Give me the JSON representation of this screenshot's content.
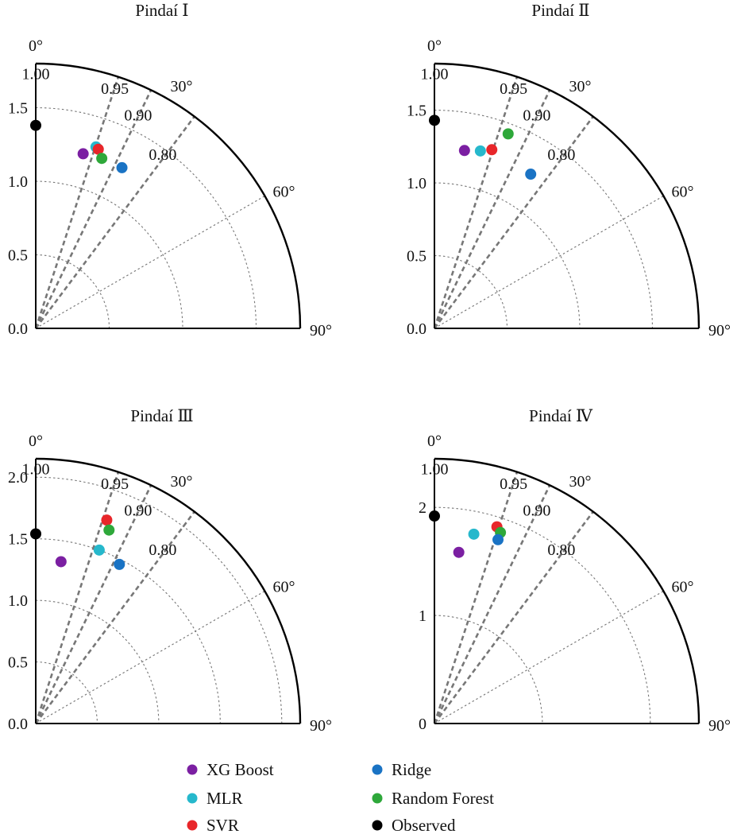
{
  "colors": {
    "XG Boost": "#7b1fa2",
    "MLR": "#26b8cc",
    "SVR": "#e8262a",
    "Ridge": "#1a73c4",
    "Random Forest": "#2ea83a",
    "Observed": "#000000"
  },
  "legend": {
    "items": [
      {
        "label": "XG Boost",
        "color": "#7b1fa2"
      },
      {
        "label": "MLR",
        "color": "#26b8cc"
      },
      {
        "label": "SVR",
        "color": "#e8262a"
      },
      {
        "label": "Ridge",
        "color": "#1a73c4"
      },
      {
        "label": "Random Forest",
        "color": "#2ea83a"
      },
      {
        "label": "Observed",
        "color": "#000000"
      }
    ]
  },
  "chart_data": [
    {
      "type": "taylor",
      "title": "Pindaí Ⅰ",
      "angle_labels": [
        "0°",
        "30°",
        "60°",
        "90°"
      ],
      "correlation_labels": [
        "1.00",
        "0.95",
        "0.90",
        "0.80"
      ],
      "correlations": [
        0.95,
        0.9,
        0.8
      ],
      "sd_ticks": [
        "0.0",
        "0.5",
        "1.0",
        "1.5"
      ],
      "sd_tick_values": [
        0.0,
        0.5,
        1.0,
        1.5
      ],
      "sd_max": 1.8,
      "rms_arcs": [
        0.5,
        1.0,
        1.5
      ],
      "points": [
        {
          "model": "XG Boost",
          "sd": 1.23,
          "correlation": 0.965
        },
        {
          "model": "MLR",
          "sd": 1.3,
          "correlation": 0.949
        },
        {
          "model": "SVR",
          "sd": 1.29,
          "correlation": 0.944
        },
        {
          "model": "Random Forest",
          "sd": 1.24,
          "correlation": 0.932
        },
        {
          "model": "Ridge",
          "sd": 1.24,
          "correlation": 0.881
        },
        {
          "model": "Observed",
          "sd": 1.38,
          "correlation": 1.0
        }
      ]
    },
    {
      "type": "taylor",
      "title": "Pindaí Ⅱ",
      "angle_labels": [
        "0°",
        "30°",
        "60°",
        "90°"
      ],
      "correlation_labels": [
        "1.00",
        "0.95",
        "0.90",
        "0.80"
      ],
      "correlations": [
        0.95,
        0.9,
        0.8
      ],
      "sd_ticks": [
        "0.0",
        "0.5",
        "1.0",
        "1.5"
      ],
      "sd_tick_values": [
        0.0,
        0.5,
        1.0,
        1.5
      ],
      "sd_max": 1.82,
      "rms_arcs": [
        0.5,
        1.0,
        1.5
      ],
      "points": [
        {
          "model": "XG Boost",
          "sd": 1.24,
          "correlation": 0.986
        },
        {
          "model": "MLR",
          "sd": 1.26,
          "correlation": 0.968
        },
        {
          "model": "SVR",
          "sd": 1.29,
          "correlation": 0.952
        },
        {
          "model": "Random Forest",
          "sd": 1.43,
          "correlation": 0.935
        },
        {
          "model": "Ridge",
          "sd": 1.25,
          "correlation": 0.848
        },
        {
          "model": "Observed",
          "sd": 1.43,
          "correlation": 1.0
        }
      ]
    },
    {
      "type": "taylor",
      "title": "Pindaí Ⅲ",
      "angle_labels": [
        "0°",
        "30°",
        "60°",
        "90°"
      ],
      "correlation_labels": [
        "1.00",
        "0.95",
        "0.90",
        "0.80"
      ],
      "correlations": [
        0.95,
        0.9,
        0.8
      ],
      "sd_ticks": [
        "0.0",
        "0.5",
        "1.0",
        "1.5",
        "2.0"
      ],
      "sd_tick_values": [
        0.0,
        0.5,
        1.0,
        1.5,
        2.0
      ],
      "sd_max": 2.15,
      "rms_arcs": [
        0.5,
        1.0,
        1.5,
        2.0
      ],
      "points": [
        {
          "model": "XG Boost",
          "sd": 1.33,
          "correlation": 0.988
        },
        {
          "model": "MLR",
          "sd": 1.5,
          "correlation": 0.939
        },
        {
          "model": "SVR",
          "sd": 1.75,
          "correlation": 0.944
        },
        {
          "model": "Random Forest",
          "sd": 1.68,
          "correlation": 0.935
        },
        {
          "model": "Ridge",
          "sd": 1.46,
          "correlation": 0.885
        },
        {
          "model": "Observed",
          "sd": 1.54,
          "correlation": 1.0
        }
      ]
    },
    {
      "type": "taylor",
      "title": "Pindaí Ⅳ",
      "angle_labels": [
        "0°",
        "30°",
        "60°",
        "90°"
      ],
      "correlation_labels": [
        "1.00",
        "0.95",
        "0.90",
        "0.80"
      ],
      "correlations": [
        0.95,
        0.9,
        0.8
      ],
      "sd_ticks": [
        "0",
        "1",
        "2"
      ],
      "sd_tick_values": [
        0,
        1,
        2
      ],
      "sd_max": 2.45,
      "rms_arcs": [
        1,
        2
      ],
      "points": [
        {
          "model": "XG Boost",
          "sd": 1.6,
          "correlation": 0.99
        },
        {
          "model": "MLR",
          "sd": 1.79,
          "correlation": 0.979
        },
        {
          "model": "SVR",
          "sd": 1.91,
          "correlation": 0.953
        },
        {
          "model": "Random Forest",
          "sd": 1.87,
          "correlation": 0.945
        },
        {
          "model": "Ridge",
          "sd": 1.8,
          "correlation": 0.945
        },
        {
          "model": "Observed",
          "sd": 1.92,
          "correlation": 1.0
        }
      ]
    }
  ]
}
